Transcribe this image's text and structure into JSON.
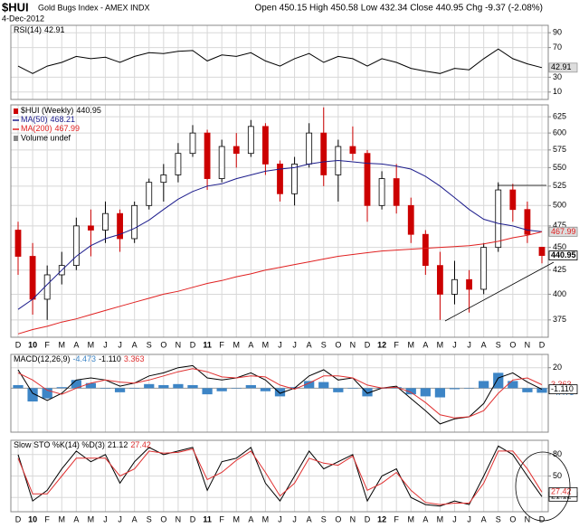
{
  "header": {
    "symbol": "$HUI",
    "name": "Gold Bugs Index - AMEX INDX",
    "date": "4-Dec-2012",
    "quote": "Open 450.15 High 450.58 Low 432.34 Close 440.95 Chg -9.37 (-2.08%)"
  },
  "chart_data": [
    {
      "type": "line",
      "title": "RSI(14)",
      "ylim": [
        0,
        100
      ],
      "yticks": [
        10,
        30,
        70,
        90
      ],
      "grid": true,
      "series": [
        {
          "color": "#000000",
          "tag": "gray",
          "label": "42.91",
          "values": [
            45,
            35,
            45,
            50,
            58,
            55,
            57,
            50,
            58,
            63,
            62,
            65,
            66,
            52,
            60,
            58,
            63,
            52,
            45,
            55,
            62,
            50,
            58,
            55,
            45,
            55,
            50,
            42,
            38,
            35,
            42,
            40,
            55,
            68,
            55,
            48,
            42.91
          ]
        }
      ]
    },
    {
      "type": "candlestick",
      "name": "$HUI (Weekly)",
      "label": "440.95",
      "tag": "box",
      "log": true,
      "grid": true,
      "x_labels": true,
      "up_color": "#000000",
      "down_color": "#cc0000",
      "volume_legend": "Volume undef",
      "categories": [
        "D",
        "10",
        "F",
        "M",
        "A",
        "M",
        "J",
        "J",
        "A",
        "S",
        "O",
        "N",
        "D",
        "11",
        "F",
        "M",
        "A",
        "M",
        "J",
        "J",
        "A",
        "S",
        "O",
        "N",
        "D",
        "12",
        "F",
        "M",
        "A",
        "M",
        "J",
        "J",
        "A",
        "S",
        "O",
        "N",
        "D"
      ],
      "open": [
        470,
        440,
        395,
        420,
        430,
        475,
        470,
        490,
        460,
        500,
        530,
        540,
        570,
        600,
        535,
        580,
        570,
        610,
        555,
        515,
        555,
        600,
        540,
        580,
        570,
        500,
        535,
        500,
        465,
        430,
        400,
        415,
        405,
        450,
        520,
        495,
        450.15
      ],
      "high": [
        480,
        455,
        430,
        445,
        485,
        495,
        505,
        495,
        505,
        535,
        555,
        585,
        612,
        605,
        590,
        600,
        620,
        615,
        560,
        565,
        615,
        640,
        590,
        610,
        575,
        545,
        555,
        510,
        470,
        445,
        435,
        425,
        455,
        530,
        528,
        505,
        450.58
      ],
      "low": [
        420,
        380,
        375,
        410,
        425,
        440,
        455,
        445,
        455,
        495,
        505,
        530,
        565,
        520,
        530,
        550,
        565,
        540,
        505,
        500,
        550,
        525,
        505,
        560,
        480,
        495,
        490,
        455,
        420,
        375,
        390,
        382,
        400,
        445,
        480,
        455,
        432.34
      ],
      "close": [
        440,
        395,
        420,
        430,
        475,
        470,
        490,
        460,
        500,
        530,
        540,
        570,
        600,
        535,
        580,
        570,
        610,
        555,
        515,
        555,
        600,
        540,
        580,
        570,
        500,
        535,
        500,
        465,
        430,
        400,
        415,
        405,
        450,
        520,
        495,
        465,
        440.95
      ],
      "ylim": [
        359,
        644
      ],
      "yticks": [
        375,
        400,
        425,
        450,
        475,
        500,
        525,
        550,
        575,
        600,
        625
      ],
      "series": [
        {
          "name": "MA(50)",
          "label": "468.21",
          "tag": "gray",
          "color": "#1c1c8c",
          "values": [
            385,
            395,
            410,
            425,
            440,
            452,
            460,
            465,
            472,
            482,
            495,
            508,
            518,
            525,
            528,
            535,
            540,
            545,
            548,
            550,
            555,
            558,
            560,
            558,
            556,
            555,
            552,
            548,
            538,
            525,
            510,
            495,
            483,
            478,
            475,
            470,
            468.21
          ]
        },
        {
          "name": "MA(200)",
          "label": "467.99",
          "tag": "gray",
          "color": "#e02020",
          "values": [
            362,
            366,
            369,
            373,
            376,
            380,
            384,
            388,
            392,
            396,
            400,
            403,
            407,
            411,
            414,
            418,
            421,
            425,
            428,
            431,
            434,
            437,
            440,
            442,
            444,
            446,
            447,
            448,
            449,
            450,
            451,
            452,
            454,
            457,
            461,
            464,
            467.99
          ]
        }
      ]
    },
    {
      "type": "line",
      "title": "MACD(12,26,9)",
      "ylim": [
        -43,
        33
      ],
      "yticks": [
        20
      ],
      "grid": true,
      "series": [
        {
          "type": "bar",
          "color": "#3d85c6",
          "tag": "plain",
          "label": "-4.473",
          "values": [
            3,
            -13,
            -10,
            1,
            8,
            5,
            0,
            -4,
            0,
            4,
            3,
            4,
            3,
            -6,
            -3,
            0,
            3,
            -3,
            -8,
            1,
            7,
            6,
            -4,
            0,
            -8,
            0,
            1,
            -6,
            -8,
            -9,
            -1,
            0,
            7,
            15,
            7,
            -4,
            -4.473
          ]
        },
        {
          "color": "#000000",
          "tag": "box",
          "label": "-1.110",
          "values": [
            18,
            -5,
            -12,
            -5,
            8,
            10,
            8,
            2,
            5,
            12,
            15,
            20,
            22,
            10,
            8,
            10,
            15,
            8,
            -5,
            0,
            12,
            18,
            8,
            10,
            -5,
            0,
            2,
            -10,
            -22,
            -35,
            -30,
            -28,
            -15,
            10,
            15,
            6,
            -1.11
          ]
        },
        {
          "color": "#e03030",
          "tag": "plain",
          "label": "3.363",
          "values": [
            15,
            8,
            -2,
            -6,
            0,
            5,
            8,
            6,
            5,
            8,
            12,
            16,
            19,
            16,
            11,
            10,
            12,
            11,
            3,
            -1,
            5,
            12,
            12,
            10,
            3,
            0,
            1,
            -4,
            -14,
            -26,
            -29,
            -28,
            -22,
            -5,
            8,
            10,
            3.363
          ]
        }
      ]
    },
    {
      "type": "line",
      "title": "Slow STO %K(14) %D(3)",
      "ylim": [
        0,
        100
      ],
      "yticks": [
        20,
        50,
        80
      ],
      "grid": true,
      "x_labels": true,
      "series": [
        {
          "color": "#000000",
          "tag": "box",
          "label": "21.12",
          "values": [
            80,
            15,
            30,
            60,
            85,
            70,
            80,
            40,
            70,
            90,
            80,
            85,
            90,
            30,
            70,
            75,
            90,
            40,
            15,
            50,
            85,
            60,
            70,
            80,
            15,
            50,
            60,
            20,
            10,
            8,
            15,
            10,
            50,
            92,
            80,
            50,
            21.12
          ]
        },
        {
          "color": "#e03030",
          "tag": "box",
          "label": "27.42",
          "values": [
            75,
            25,
            25,
            50,
            75,
            75,
            75,
            50,
            60,
            85,
            82,
            83,
            88,
            45,
            55,
            72,
            85,
            55,
            22,
            40,
            75,
            68,
            65,
            78,
            30,
            40,
            55,
            30,
            13,
            10,
            12,
            12,
            40,
            85,
            85,
            60,
            27.42
          ]
        }
      ]
    }
  ]
}
